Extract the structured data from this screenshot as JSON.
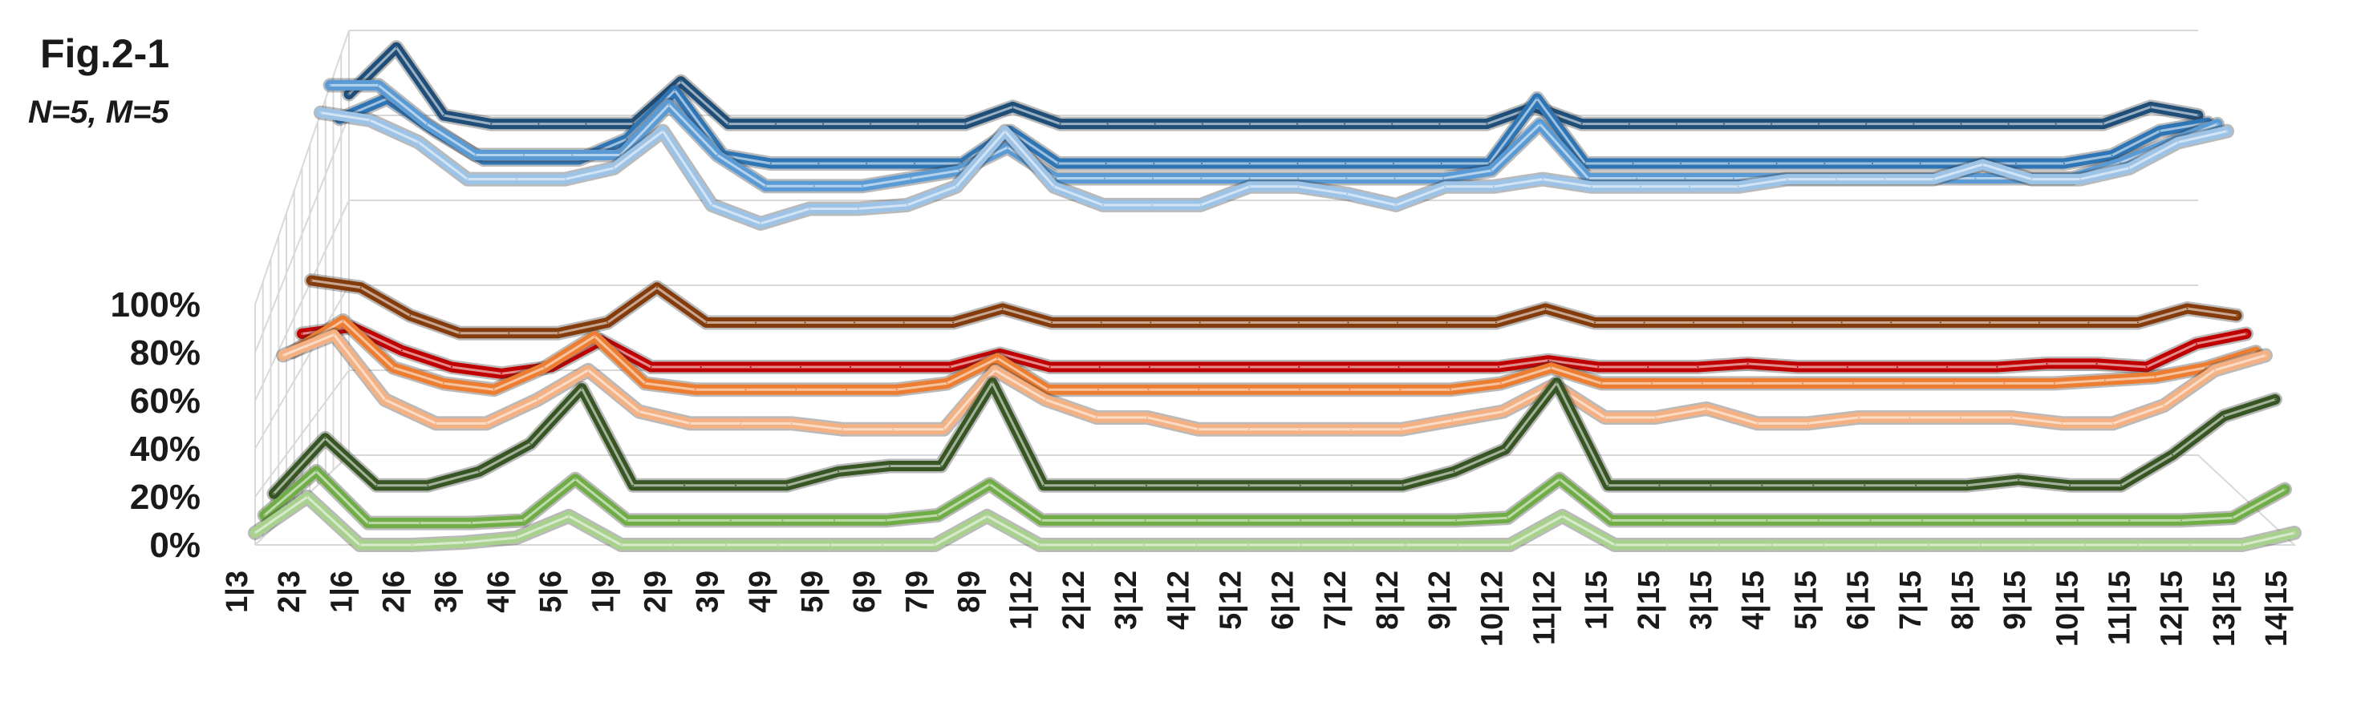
{
  "figure": {
    "title": "Fig.2-1",
    "subtitle": "N=5, M=5"
  },
  "chart_data": {
    "type": "line",
    "title": "Fig.2-1",
    "subtitle": "N=5, M=5",
    "three_d": true,
    "y_ticks": [
      "0%",
      "20%",
      "40%",
      "60%",
      "80%",
      "100%"
    ],
    "ylim": [
      0,
      100
    ],
    "categories": [
      "1|3",
      "2|3",
      "1|6",
      "2|6",
      "3|6",
      "4|6",
      "5|6",
      "1|9",
      "2|9",
      "3|9",
      "4|9",
      "5|9",
      "6|9",
      "7|9",
      "8|9",
      "1|12",
      "2|12",
      "3|12",
      "4|12",
      "5|12",
      "6|12",
      "7|12",
      "8|12",
      "9|12",
      "10|12",
      "11|12",
      "1|15",
      "2|15",
      "3|15",
      "4|15",
      "5|15",
      "6|15",
      "7|15",
      "8|15",
      "9|15",
      "10|15",
      "11|15",
      "12|15",
      "13|15",
      "14|15"
    ],
    "series": [
      {
        "color": "#a9d18e",
        "values": [
          5,
          20,
          0,
          0,
          1,
          3,
          12,
          0,
          0,
          0,
          0,
          0,
          0,
          0,
          12,
          0,
          0,
          0,
          0,
          0,
          0,
          0,
          0,
          0,
          0,
          12,
          0,
          0,
          0,
          0,
          0,
          0,
          0,
          0,
          0,
          0,
          0,
          0,
          0,
          5
        ]
      },
      {
        "color": "#70ad47",
        "values": [
          8,
          25,
          5,
          5,
          5,
          6,
          22,
          6,
          6,
          6,
          6,
          6,
          6,
          8,
          20,
          6,
          6,
          6,
          6,
          6,
          6,
          6,
          6,
          6,
          7,
          22,
          6,
          6,
          6,
          6,
          6,
          6,
          6,
          6,
          6,
          6,
          6,
          6,
          7,
          18
        ]
      },
      {
        "color": "#375623",
        "values": [
          12,
          32,
          15,
          15,
          20,
          30,
          50,
          15,
          15,
          15,
          15,
          20,
          22,
          22,
          52,
          15,
          15,
          15,
          15,
          15,
          15,
          15,
          15,
          20,
          28,
          52,
          15,
          15,
          15,
          15,
          15,
          15,
          15,
          15,
          17,
          15,
          15,
          26,
          40,
          46
        ]
      },
      {
        "color": "#f4b183",
        "values": [
          55,
          62,
          40,
          32,
          32,
          40,
          50,
          36,
          32,
          32,
          32,
          30,
          30,
          30,
          50,
          40,
          34,
          34,
          30,
          30,
          30,
          30,
          30,
          33,
          36,
          45,
          34,
          34,
          37,
          32,
          32,
          34,
          34,
          34,
          34,
          32,
          32,
          38,
          50,
          55
        ]
      },
      {
        "color": "#ed7d31",
        "values": [
          50,
          60,
          45,
          40,
          38,
          45,
          55,
          40,
          38,
          38,
          38,
          38,
          38,
          40,
          48,
          38,
          38,
          38,
          38,
          38,
          38,
          38,
          38,
          38,
          40,
          45,
          40,
          40,
          40,
          40,
          40,
          40,
          40,
          40,
          40,
          40,
          41,
          42,
          45,
          50
        ]
      },
      {
        "color": "#c00000",
        "values": [
          50,
          52,
          45,
          40,
          38,
          40,
          48,
          40,
          40,
          40,
          40,
          40,
          40,
          40,
          44,
          40,
          40,
          40,
          40,
          40,
          40,
          40,
          40,
          40,
          40,
          42,
          40,
          40,
          40,
          41,
          40,
          40,
          40,
          40,
          40,
          41,
          41,
          40,
          47,
          50
        ]
      },
      {
        "color": "#843c0c",
        "values": [
          60,
          58,
          50,
          45,
          45,
          45,
          48,
          58,
          48,
          48,
          48,
          48,
          48,
          48,
          52,
          48,
          48,
          48,
          48,
          48,
          48,
          48,
          48,
          48,
          48,
          52,
          48,
          48,
          48,
          48,
          48,
          48,
          48,
          48,
          48,
          48,
          48,
          48,
          52,
          50
        ]
      },
      {
        "color": "#9dc3e6",
        "values": [
          100,
          98,
          92,
          82,
          82,
          82,
          85,
          95,
          75,
          70,
          74,
          74,
          75,
          80,
          95,
          80,
          75,
          75,
          75,
          80,
          80,
          78,
          75,
          80,
          80,
          82,
          80,
          80,
          80,
          80,
          82,
          82,
          82,
          82,
          86,
          82,
          82,
          85,
          92,
          95
        ]
      },
      {
        "color": "#5b9bd5",
        "values": [
          100,
          100,
          90,
          82,
          82,
          82,
          82,
          95,
          82,
          74,
          74,
          74,
          76,
          78,
          84,
          76,
          76,
          76,
          76,
          76,
          76,
          76,
          76,
          76,
          78,
          90,
          76,
          76,
          76,
          76,
          76,
          76,
          76,
          76,
          76,
          76,
          76,
          80,
          85,
          90
        ]
      },
      {
        "color": "#2e75b6",
        "values": [
          85,
          90,
          82,
          75,
          75,
          75,
          80,
          92,
          76,
          74,
          74,
          74,
          74,
          74,
          82,
          74,
          74,
          74,
          74,
          74,
          74,
          74,
          74,
          74,
          74,
          90,
          74,
          74,
          74,
          74,
          74,
          74,
          74,
          74,
          74,
          74,
          74,
          76,
          82,
          84
        ]
      },
      {
        "color": "#1f4e79",
        "values": [
          85,
          96,
          80,
          78,
          78,
          78,
          78,
          88,
          78,
          78,
          78,
          78,
          78,
          78,
          82,
          78,
          78,
          78,
          78,
          78,
          78,
          78,
          78,
          78,
          78,
          82,
          78,
          78,
          78,
          78,
          78,
          78,
          78,
          78,
          78,
          78,
          78,
          78,
          82,
          80
        ]
      }
    ]
  }
}
